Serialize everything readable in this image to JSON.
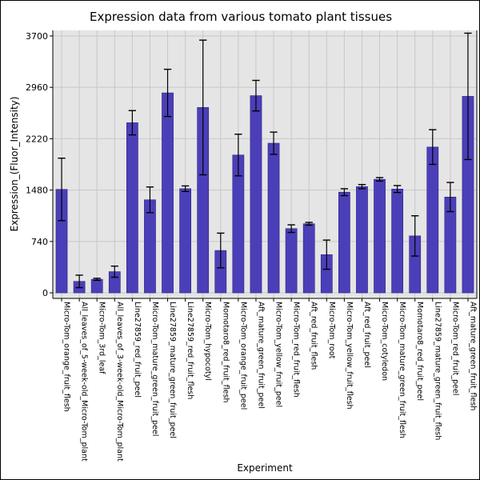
{
  "chart_data": {
    "type": "bar",
    "title": "Expression data from various tomato plant tissues",
    "xlabel": "Experiment",
    "ylabel": "Expression_(Fluor_Intensity)",
    "ylim": [
      -80,
      3780
    ],
    "yticks": [
      0,
      740,
      1480,
      2220,
      2960,
      3700
    ],
    "grid": true,
    "colors": {
      "bar": "#4b3fb9",
      "bar_edge": "#2a2280",
      "plot_bg": "#e5e5e5",
      "grid": "#c8c8c8"
    },
    "categories": [
      "Micro-Tom_orange_fruit_flesh",
      "All_leaves_of_5-week-old_Micro-Tom_plant",
      "Micro-Tom_3rd_leaf",
      "All_leaves_of_3-week-old_Micro-Tom_plant",
      "Line27859_red_fruit_peel",
      "Micro-Tom_mature_green_fruit_peel",
      "Line27859_mature_green_fruit_peel",
      "Line27859_red_fruit_flesh",
      "Micro-Tom_hypocotyl",
      "Momotaro8_red_fruit_flesh",
      "Micro-Tom_orange_fruit_peel",
      "Aft_mature_green_fruit_peel",
      "Micro-Tom_yellow_fruit_peel",
      "Micro-Tom_red_fruit_flesh",
      "Aft_red_fruit_flesh",
      "Micro-Tom_root",
      "Micro-Tom_yellow_fruit_flesh",
      "Aft_red_fruit_peel",
      "Micro-Tom_cotyledon",
      "Micro-Tom_mature_green_fruit_flesh",
      "Momotaro8_red_fruit_peel",
      "Line27859_mature_green_fruit_flesh",
      "Micro-Tom_red_fruit_peel",
      "Aft_mature_green_fruit_flesh"
    ],
    "values": [
      1490,
      165,
      195,
      305,
      2450,
      1340,
      2880,
      1500,
      2670,
      610,
      1985,
      2840,
      2155,
      925,
      995,
      550,
      1450,
      1530,
      1635,
      1495,
      820,
      2100,
      1380,
      2830
    ],
    "error": [
      450,
      90,
      15,
      80,
      175,
      185,
      340,
      40,
      970,
      250,
      300,
      220,
      160,
      55,
      20,
      210,
      50,
      30,
      25,
      50,
      290,
      250,
      210,
      910
    ]
  }
}
